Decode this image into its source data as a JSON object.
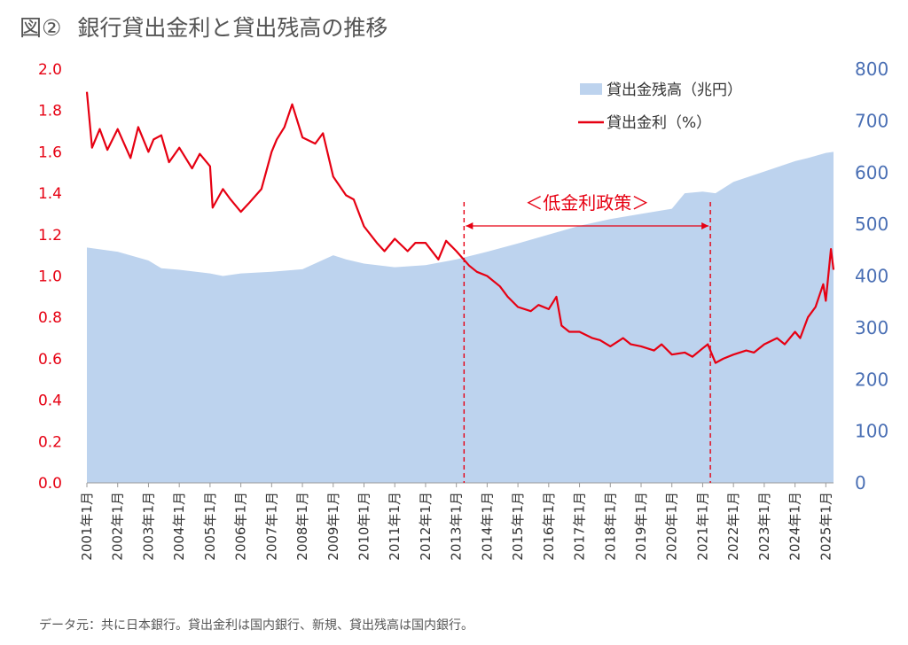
{
  "title": {
    "figure_no": "図②",
    "text": "銀行貸出金利と貸出残高の推移"
  },
  "source_note": "データ元：共に日本銀行。貸出金利は国内銀行、新規、貸出残高は国内銀行。",
  "colors": {
    "rate_line": "#e60012",
    "balance_area": "#bdd3ee",
    "right_axis": "#4a6fb4"
  },
  "chart_data": {
    "type": "line+area",
    "title": "銀行貸出金利と貸出残高の推移",
    "x_tick_labels": [
      "2001年1月",
      "2002年1月",
      "2003年1月",
      "2004年1月",
      "2005年1月",
      "2006年1月",
      "2007年1月",
      "2008年1月",
      "2009年1月",
      "2010年1月",
      "2011年1月",
      "2012年1月",
      "2013年1月",
      "2014年1月",
      "2015年1月",
      "2016年1月",
      "2017年1月",
      "2018年1月",
      "2019年1月",
      "2020年1月",
      "2021年1月",
      "2022年1月",
      "2023年1月",
      "2024年1月",
      "2025年1月"
    ],
    "y_left": {
      "ticks": [
        "0.0",
        "0.2",
        "0.4",
        "0.6",
        "0.8",
        "1.0",
        "1.2",
        "1.4",
        "1.6",
        "1.8",
        "2.0"
      ],
      "lim": [
        0,
        2.0
      ]
    },
    "y_right": {
      "ticks": [
        "0",
        "100",
        "200",
        "300",
        "400",
        "500",
        "600",
        "700",
        "800"
      ],
      "lim": [
        0,
        800
      ]
    },
    "legend": {
      "position": "top-right",
      "area_label": "貸出金残高（兆円）",
      "line_label": "貸出金利（%）"
    },
    "series": [
      {
        "name": "貸出金利（%）",
        "axis": "left",
        "kind": "line",
        "interval": "monthly, 2001-01 to 2025-01 plus tail",
        "x": [
          "2001-01",
          "2001-03",
          "2001-06",
          "2001-09",
          "2002-01",
          "2002-06",
          "2002-09",
          "2003-01",
          "2003-03",
          "2003-06",
          "2003-09",
          "2004-01",
          "2004-06",
          "2004-09",
          "2005-01",
          "2005-02",
          "2005-06",
          "2005-09",
          "2006-01",
          "2006-04",
          "2006-09",
          "2007-01",
          "2007-03",
          "2007-06",
          "2007-09",
          "2008-01",
          "2008-06",
          "2008-09",
          "2009-01",
          "2009-06",
          "2009-09",
          "2010-01",
          "2010-06",
          "2010-09",
          "2011-01",
          "2011-06",
          "2011-09",
          "2012-01",
          "2012-06",
          "2012-09",
          "2013-01",
          "2013-06",
          "2013-09",
          "2014-01",
          "2014-06",
          "2014-09",
          "2015-01",
          "2015-06",
          "2015-09",
          "2016-01",
          "2016-04",
          "2016-06",
          "2016-09",
          "2017-01",
          "2017-06",
          "2017-09",
          "2018-01",
          "2018-06",
          "2018-09",
          "2019-01",
          "2019-06",
          "2019-09",
          "2020-01",
          "2020-06",
          "2020-09",
          "2021-01",
          "2021-03",
          "2021-06",
          "2021-09",
          "2022-01",
          "2022-06",
          "2022-09",
          "2023-01",
          "2023-06",
          "2023-09",
          "2024-01",
          "2024-03",
          "2024-06",
          "2024-09",
          "2024-12",
          "2025-01",
          "2025-03",
          "2025-04"
        ],
        "values": [
          1.89,
          1.62,
          1.71,
          1.61,
          1.71,
          1.57,
          1.72,
          1.6,
          1.66,
          1.68,
          1.55,
          1.62,
          1.52,
          1.59,
          1.53,
          1.33,
          1.42,
          1.37,
          1.31,
          1.35,
          1.42,
          1.6,
          1.66,
          1.72,
          1.83,
          1.67,
          1.64,
          1.69,
          1.48,
          1.39,
          1.37,
          1.24,
          1.16,
          1.12,
          1.18,
          1.12,
          1.16,
          1.16,
          1.08,
          1.17,
          1.12,
          1.05,
          1.02,
          1.0,
          0.95,
          0.9,
          0.85,
          0.83,
          0.86,
          0.84,
          0.9,
          0.76,
          0.73,
          0.73,
          0.7,
          0.69,
          0.66,
          0.7,
          0.67,
          0.66,
          0.64,
          0.67,
          0.62,
          0.63,
          0.61,
          0.65,
          0.67,
          0.58,
          0.6,
          0.62,
          0.64,
          0.63,
          0.67,
          0.7,
          0.67,
          0.73,
          0.7,
          0.8,
          0.85,
          0.96,
          0.88,
          1.13,
          1.03
        ]
      },
      {
        "name": "貸出金残高（兆円）",
        "axis": "right",
        "kind": "area",
        "x": [
          "2001-01",
          "2002-01",
          "2003-01",
          "2003-06",
          "2004-01",
          "2005-01",
          "2005-06",
          "2006-01",
          "2007-01",
          "2008-01",
          "2009-01",
          "2009-06",
          "2010-01",
          "2011-01",
          "2012-01",
          "2013-01",
          "2014-01",
          "2015-01",
          "2016-01",
          "2017-01",
          "2018-01",
          "2019-01",
          "2020-01",
          "2020-06",
          "2021-01",
          "2021-06",
          "2022-01",
          "2023-01",
          "2024-01",
          "2024-06",
          "2025-01",
          "2025-04"
        ],
        "values": [
          455,
          447,
          430,
          415,
          412,
          405,
          400,
          405,
          408,
          413,
          440,
          432,
          424,
          417,
          421,
          432,
          447,
          463,
          480,
          497,
          510,
          520,
          530,
          560,
          563,
          560,
          582,
          602,
          622,
          628,
          638,
          640
        ]
      }
    ],
    "annotations": [
      {
        "type": "span",
        "label": "＜低金利政策＞",
        "x_start": "2013-04",
        "x_end": "2021-04"
      }
    ]
  }
}
